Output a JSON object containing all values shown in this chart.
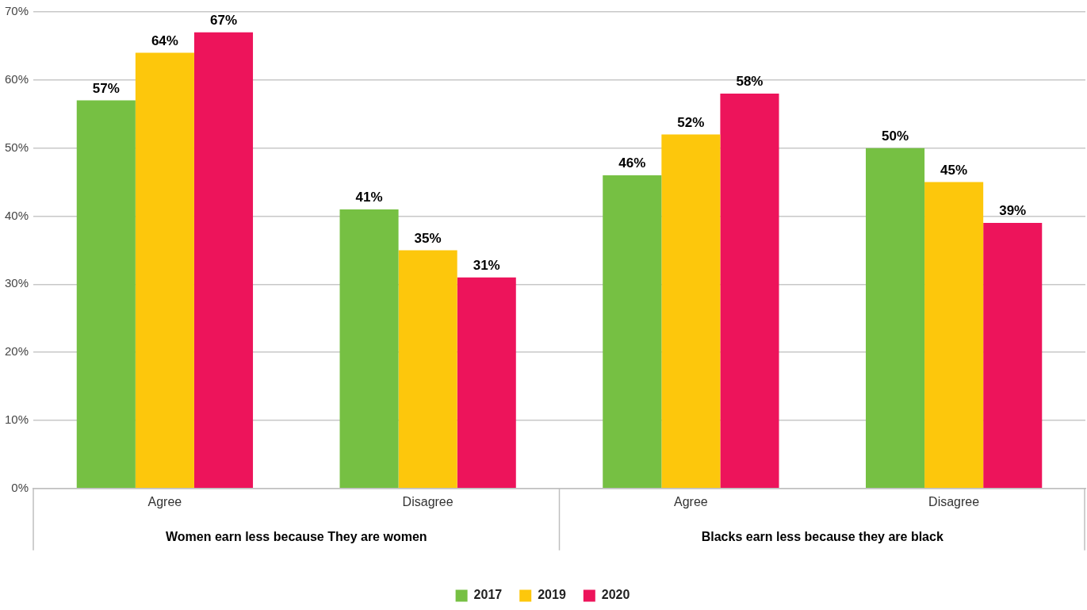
{
  "chart_data": {
    "type": "bar",
    "categories": [
      "Agree",
      "Disagree",
      "Agree",
      "Disagree"
    ],
    "series": [
      {
        "name": "2017",
        "color": "#76c043",
        "values": [
          57,
          41,
          46,
          50
        ],
        "value_labels": [
          "57%",
          "41%",
          "46%",
          "50%"
        ]
      },
      {
        "name": "2019",
        "color": "#fdc70c",
        "values": [
          64,
          35,
          52,
          45
        ],
        "value_labels": [
          "64%",
          "35%",
          "52%",
          "45%"
        ]
      },
      {
        "name": "2020",
        "color": "#ed145b",
        "values": [
          67,
          31,
          58,
          39
        ],
        "value_labels": [
          "67%",
          "31%",
          "58%",
          "39%"
        ]
      }
    ],
    "annotations": [
      "Women earn less because They are women",
      "Blacks earn less because they are black"
    ],
    "ylim": [
      0,
      70
    ],
    "yticks": [
      {
        "value": 0,
        "label": "0%"
      },
      {
        "value": 10,
        "label": "10%"
      },
      {
        "value": 20,
        "label": "20%"
      },
      {
        "value": 30,
        "label": "30%"
      },
      {
        "value": 40,
        "label": "40%"
      },
      {
        "value": 50,
        "label": "50%"
      },
      {
        "value": 60,
        "label": "60%"
      },
      {
        "value": 70,
        "label": "70%"
      }
    ],
    "grid": "y",
    "legend": "bottom"
  }
}
